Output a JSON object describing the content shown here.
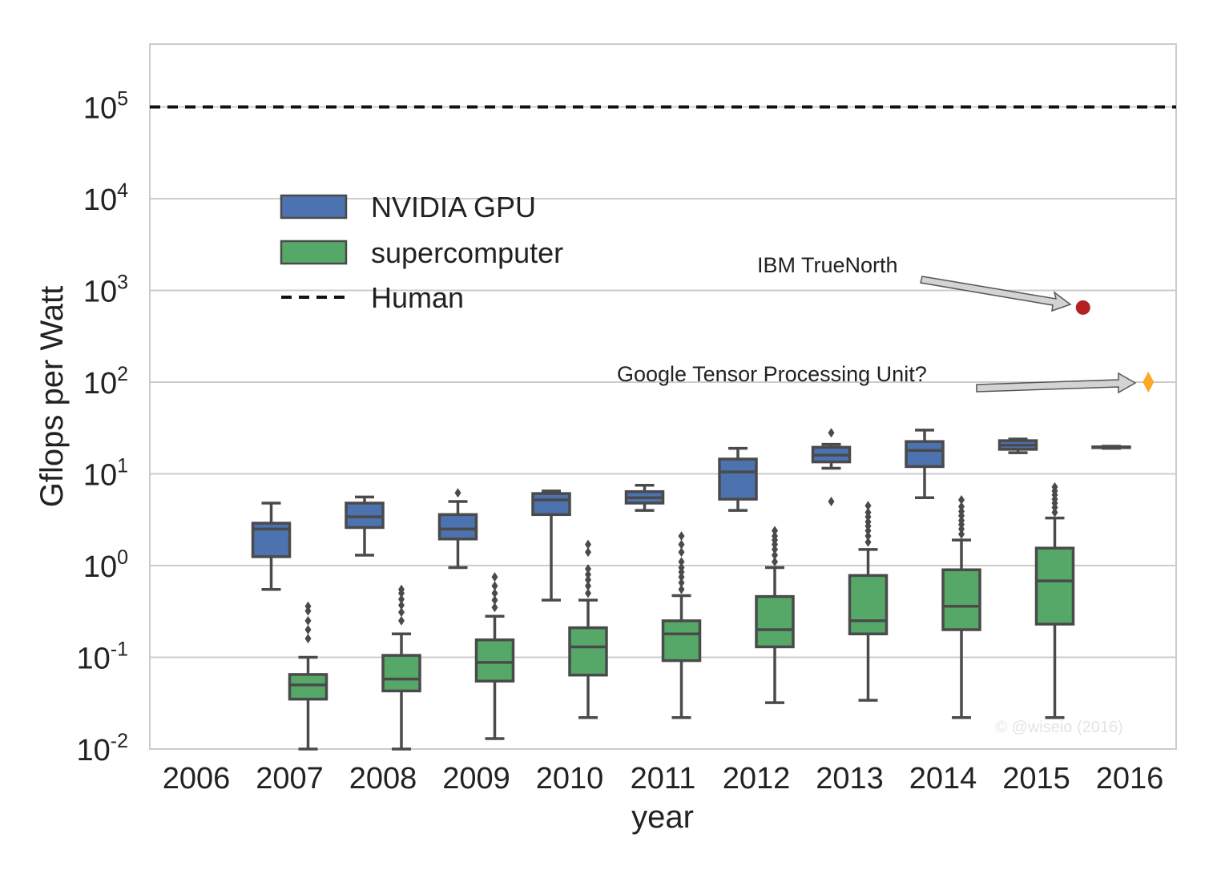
{
  "chart_data": {
    "type": "box",
    "xlabel": "year",
    "ylabel": "Gflops per Watt",
    "yscale": "log",
    "ylim": [
      0.01,
      500000
    ],
    "categories": [
      "2006",
      "2007",
      "2008",
      "2009",
      "2010",
      "2011",
      "2012",
      "2013",
      "2014",
      "2015",
      "2016"
    ],
    "y_ticks": [
      {
        "value": 0.01,
        "base": "10",
        "exp": "-2"
      },
      {
        "value": 0.1,
        "base": "10",
        "exp": "-1"
      },
      {
        "value": 1,
        "base": "10",
        "exp": "0"
      },
      {
        "value": 10,
        "base": "10",
        "exp": "1"
      },
      {
        "value": 100,
        "base": "10",
        "exp": "2"
      },
      {
        "value": 1000,
        "base": "10",
        "exp": "3"
      },
      {
        "value": 10000,
        "base": "10",
        "exp": "4"
      },
      {
        "value": 100000,
        "base": "10",
        "exp": "5"
      }
    ],
    "grid": true,
    "legend_position": "upper-left",
    "series": [
      {
        "name": "NVIDIA GPU",
        "color": "#4c72b0",
        "boxes": [
          {
            "category": "2007",
            "whislo": 0.55,
            "q1": 1.25,
            "med": 2.5,
            "q3": 2.9,
            "whishi": 4.8,
            "fliers": []
          },
          {
            "category": "2008",
            "whislo": 1.3,
            "q1": 2.6,
            "med": 3.4,
            "q3": 4.8,
            "whishi": 5.6,
            "fliers": []
          },
          {
            "category": "2009",
            "whislo": 0.95,
            "q1": 1.95,
            "med": 2.5,
            "q3": 3.6,
            "whishi": 5.0,
            "fliers": [
              6.2
            ]
          },
          {
            "category": "2010",
            "whislo": 0.42,
            "q1": 3.6,
            "med": 5.2,
            "q3": 6.1,
            "whishi": 6.5,
            "fliers": []
          },
          {
            "category": "2011",
            "whislo": 4.0,
            "q1": 4.8,
            "med": 5.5,
            "q3": 6.4,
            "whishi": 7.5,
            "fliers": []
          },
          {
            "category": "2012",
            "whislo": 4.0,
            "q1": 5.3,
            "med": 10.5,
            "q3": 14.5,
            "whishi": 19.0,
            "fliers": []
          },
          {
            "category": "2013",
            "whislo": 11.5,
            "q1": 13.5,
            "med": 16.0,
            "q3": 19.5,
            "whishi": 21.0,
            "fliers": [
              5.0,
              28.0
            ]
          },
          {
            "category": "2014",
            "whislo": 5.5,
            "q1": 12.0,
            "med": 18.0,
            "q3": 22.5,
            "whishi": 30.0,
            "fliers": []
          },
          {
            "category": "2015",
            "whislo": 17.0,
            "q1": 18.5,
            "med": 20.5,
            "q3": 23.0,
            "whishi": 24.0,
            "fliers": []
          },
          {
            "category": "2016",
            "whislo": 19.0,
            "q1": 19.3,
            "med": 19.5,
            "q3": 19.7,
            "whishi": 20.0,
            "fliers": []
          }
        ]
      },
      {
        "name": "supercomputer",
        "color": "#55a868",
        "boxes": [
          {
            "category": "2007",
            "whislo": 0.01,
            "q1": 0.035,
            "med": 0.05,
            "q3": 0.065,
            "whishi": 0.1,
            "fliers": [
              0.16,
              0.2,
              0.25,
              0.32,
              0.36
            ]
          },
          {
            "category": "2008",
            "whislo": 0.01,
            "q1": 0.043,
            "med": 0.058,
            "q3": 0.105,
            "whishi": 0.18,
            "fliers": [
              0.25,
              0.31,
              0.37,
              0.43,
              0.5,
              0.55
            ]
          },
          {
            "category": "2009",
            "whislo": 0.013,
            "q1": 0.055,
            "med": 0.088,
            "q3": 0.155,
            "whishi": 0.28,
            "fliers": [
              0.35,
              0.42,
              0.5,
              0.6,
              0.75
            ]
          },
          {
            "category": "2010",
            "whislo": 0.022,
            "q1": 0.064,
            "med": 0.13,
            "q3": 0.21,
            "whishi": 0.42,
            "fliers": [
              0.5,
              0.6,
              0.7,
              0.8,
              0.92,
              1.4,
              1.7
            ]
          },
          {
            "category": "2011",
            "whislo": 0.022,
            "q1": 0.092,
            "med": 0.18,
            "q3": 0.25,
            "whishi": 0.47,
            "fliers": [
              0.55,
              0.65,
              0.75,
              0.85,
              0.95,
              1.1,
              1.4,
              1.7,
              2.1
            ]
          },
          {
            "category": "2012",
            "whislo": 0.032,
            "q1": 0.13,
            "med": 0.2,
            "q3": 0.46,
            "whishi": 0.95,
            "fliers": [
              1.1,
              1.3,
              1.5,
              1.7,
              1.9,
              2.1,
              2.4
            ]
          },
          {
            "category": "2013",
            "whislo": 0.034,
            "q1": 0.18,
            "med": 0.25,
            "q3": 0.78,
            "whishi": 1.5,
            "fliers": [
              1.8,
              2.1,
              2.4,
              2.7,
              3.0,
              3.4,
              3.8,
              4.5
            ]
          },
          {
            "category": "2014",
            "whislo": 0.022,
            "q1": 0.2,
            "med": 0.36,
            "q3": 0.9,
            "whishi": 1.9,
            "fliers": [
              2.2,
              2.5,
              2.8,
              3.1,
              3.5,
              3.9,
              4.4,
              5.2
            ]
          },
          {
            "category": "2015",
            "whislo": 0.022,
            "q1": 0.23,
            "med": 0.68,
            "q3": 1.55,
            "whishi": 3.3,
            "fliers": [
              3.8,
              4.3,
              4.8,
              5.3,
              5.9,
              6.5,
              7.2
            ]
          }
        ]
      }
    ],
    "reference_lines": [
      {
        "name": "Human",
        "y": 100000,
        "style": "dashed",
        "color": "#111111"
      }
    ],
    "points": [
      {
        "label": "IBM TrueNorth",
        "x": "2015",
        "x_offset": 0.5,
        "y": 650,
        "marker": "circle",
        "color": "#b22222"
      },
      {
        "label": "Google Tensor Processing Unit?",
        "x": "2016",
        "x_offset": 0.2,
        "y": 100,
        "marker": "diamond",
        "color": "#ffa726"
      }
    ],
    "watermark": "© @wiseio (2016)"
  }
}
